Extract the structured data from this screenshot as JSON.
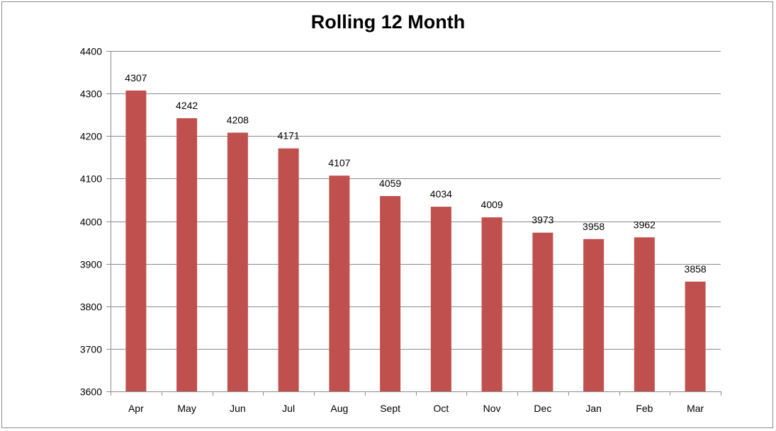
{
  "chart_data": {
    "type": "bar",
    "title": "Rolling 12 Month",
    "categories": [
      "Apr",
      "May",
      "Jun",
      "Jul",
      "Aug",
      "Sept",
      "Oct",
      "Nov",
      "Dec",
      "Jan",
      "Feb",
      "Mar"
    ],
    "values": [
      4307,
      4242,
      4208,
      4171,
      4107,
      4059,
      4034,
      4009,
      3973,
      3958,
      3962,
      3858
    ],
    "ylim": [
      3600,
      4400
    ],
    "yticks": [
      3600,
      3700,
      3800,
      3900,
      4000,
      4100,
      4200,
      4300,
      4400
    ],
    "grid": true,
    "bar_color": "#c0504d",
    "data_labels": true,
    "legend": "none"
  }
}
